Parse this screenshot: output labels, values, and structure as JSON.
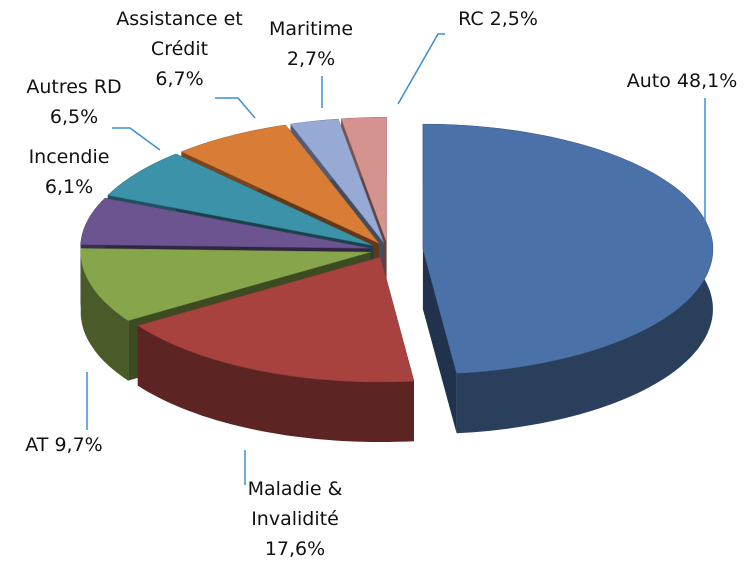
{
  "chart_data": {
    "type": "pie",
    "categories": [
      "Auto",
      "Maladie & Invalidité",
      "AT",
      "Incendie",
      "Autres RD",
      "Assistance et Crédit",
      "Maritime",
      "RC"
    ],
    "values": [
      48.1,
      17.6,
      9.7,
      6.1,
      6.5,
      6.7,
      2.7,
      2.5
    ],
    "value_labels": [
      "48,1%",
      "17,6%",
      "9,7%",
      "6,1%",
      "6,5%",
      "6,7%",
      "2,7%",
      "2,5%"
    ],
    "colors": [
      "#4a72a8",
      "#a8423f",
      "#87a64b",
      "#6c5491",
      "#3b92a9",
      "#d97d36",
      "#97a9d5",
      "#d5938f"
    ]
  }
}
